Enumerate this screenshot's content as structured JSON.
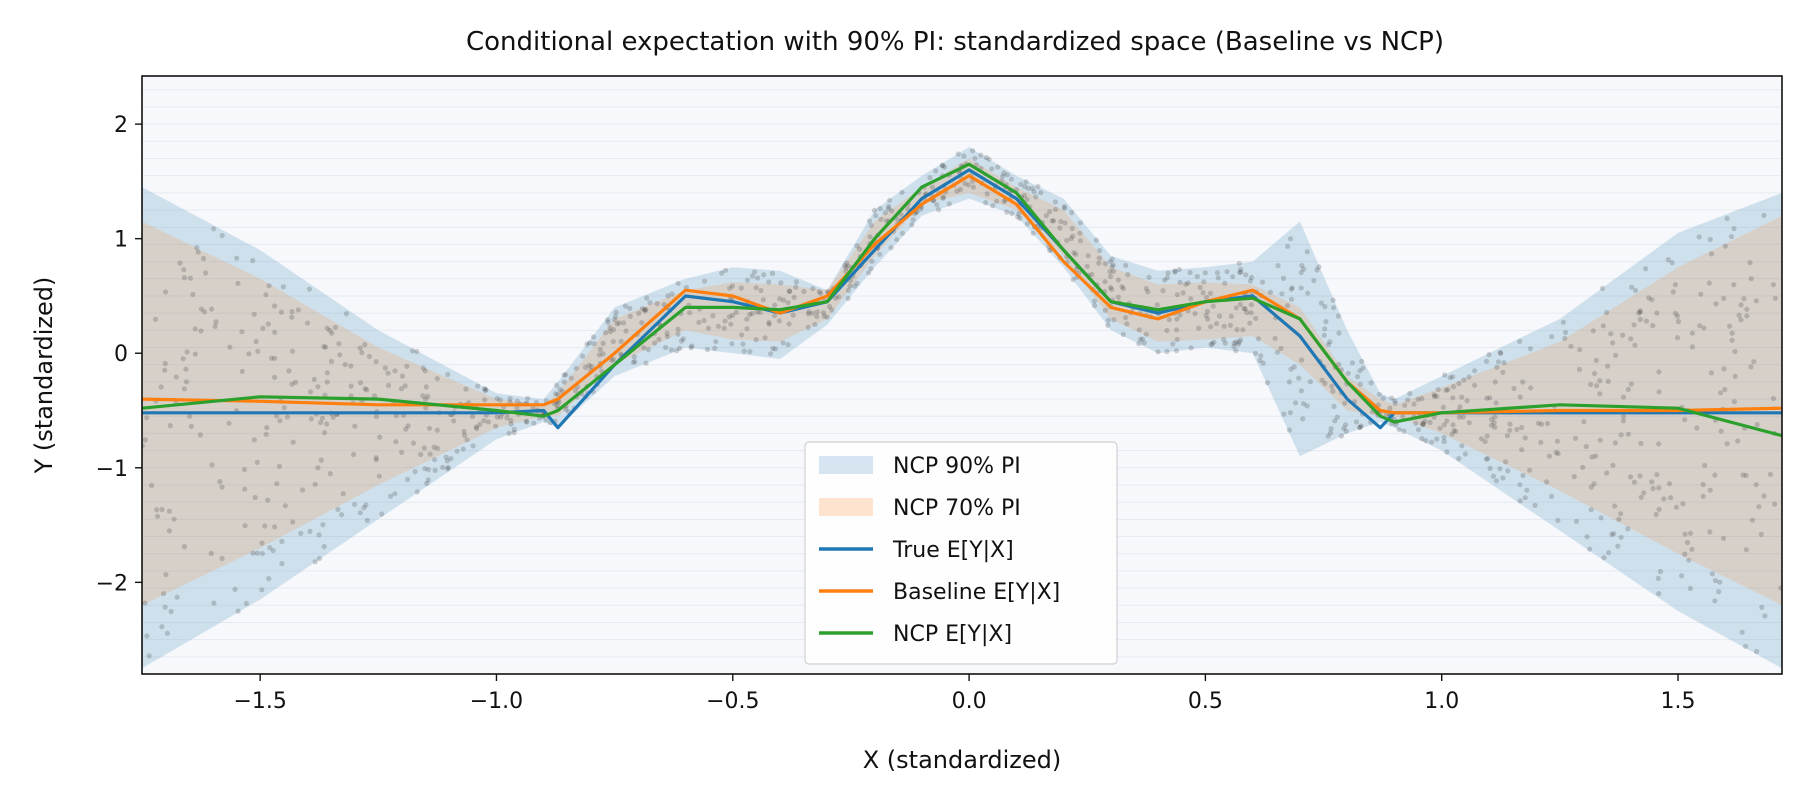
{
  "chart_data": {
    "type": "line",
    "title": "Conditional expectation with 90% PI: standardized space (Baseline vs NCP)",
    "xlabel": "X (standardized)",
    "ylabel": "Y (standardized)",
    "xlim": [
      -1.75,
      1.72
    ],
    "ylim": [
      -2.8,
      2.42
    ],
    "xticks": [
      -1.5,
      -1.0,
      -0.5,
      0.0,
      0.5,
      1.0,
      1.5
    ],
    "xtick_labels": [
      "−1.5",
      "−1.0",
      "−0.5",
      "0.0",
      "0.5",
      "1.0",
      "1.5"
    ],
    "yticks": [
      2,
      1,
      0,
      -1,
      -2
    ],
    "ytick_labels": [
      "2",
      "1",
      "0",
      "−1",
      "−2"
    ],
    "legend_position": "bottom-center",
    "colors": {
      "pi90": "#1f77b4",
      "pi70": "#ff7f0e",
      "true": "#1f77b4",
      "baseline": "#ff7f0e",
      "ncp": "#2ca02c",
      "points": "#333333"
    },
    "x": [
      -1.75,
      -1.5,
      -1.25,
      -1.0,
      -0.9,
      -0.87,
      -0.75,
      -0.6,
      -0.5,
      -0.4,
      -0.3,
      -0.2,
      -0.1,
      0.0,
      0.1,
      0.2,
      0.3,
      0.4,
      0.5,
      0.6,
      0.7,
      0.8,
      0.87,
      0.9,
      1.0,
      1.25,
      1.5,
      1.72
    ],
    "series": [
      {
        "name": "NCP 90% PI",
        "kind": "band",
        "lower": [
          -2.75,
          -2.15,
          -1.45,
          -0.75,
          -0.6,
          -0.65,
          -0.2,
          0.05,
          0.0,
          -0.05,
          0.25,
          0.75,
          1.2,
          1.35,
          1.2,
          0.75,
          0.2,
          0.0,
          0.05,
          0.0,
          -0.9,
          -0.7,
          -0.6,
          -0.65,
          -0.85,
          -1.55,
          -2.25,
          -2.75
        ],
        "upper": [
          1.45,
          0.9,
          0.2,
          -0.35,
          -0.4,
          -0.25,
          0.4,
          0.65,
          0.75,
          0.72,
          0.55,
          1.25,
          1.55,
          1.8,
          1.55,
          1.35,
          0.85,
          0.72,
          0.75,
          0.8,
          1.15,
          0.2,
          -0.35,
          -0.4,
          -0.2,
          0.3,
          1.05,
          1.4
        ]
      },
      {
        "name": "NCP 70% PI",
        "kind": "band",
        "lower": [
          -2.2,
          -1.7,
          -1.15,
          -0.65,
          -0.55,
          -0.55,
          -0.1,
          0.2,
          0.12,
          0.1,
          0.3,
          0.85,
          1.3,
          1.4,
          1.25,
          0.85,
          0.3,
          0.1,
          0.12,
          0.15,
          -0.1,
          -0.5,
          -0.55,
          -0.55,
          -0.7,
          -1.2,
          -1.75,
          -2.2
        ],
        "upper": [
          1.15,
          0.65,
          0.05,
          -0.4,
          -0.45,
          -0.35,
          0.3,
          0.55,
          0.62,
          0.6,
          0.55,
          1.15,
          1.45,
          1.7,
          1.45,
          1.25,
          0.75,
          0.6,
          0.62,
          0.6,
          0.4,
          -0.2,
          -0.4,
          -0.45,
          -0.3,
          0.1,
          0.75,
          1.2
        ]
      },
      {
        "name": "True E[Y|X]",
        "kind": "line",
        "values": [
          -0.52,
          -0.52,
          -0.52,
          -0.52,
          -0.5,
          -0.65,
          -0.1,
          0.5,
          0.45,
          0.35,
          0.45,
          0.9,
          1.35,
          1.6,
          1.35,
          0.9,
          0.45,
          0.35,
          0.45,
          0.5,
          0.15,
          -0.4,
          -0.65,
          -0.52,
          -0.52,
          -0.52,
          -0.52,
          -0.52
        ]
      },
      {
        "name": "Baseline E[Y|X]",
        "kind": "line",
        "values": [
          -0.4,
          -0.42,
          -0.45,
          -0.45,
          -0.45,
          -0.4,
          0.0,
          0.55,
          0.5,
          0.35,
          0.5,
          0.95,
          1.3,
          1.55,
          1.3,
          0.8,
          0.4,
          0.3,
          0.45,
          0.55,
          0.3,
          -0.25,
          -0.5,
          -0.52,
          -0.52,
          -0.5,
          -0.5,
          -0.48
        ]
      },
      {
        "name": "NCP E[Y|X]",
        "kind": "line",
        "values": [
          -0.48,
          -0.38,
          -0.4,
          -0.5,
          -0.55,
          -0.5,
          -0.1,
          0.4,
          0.4,
          0.38,
          0.45,
          1.0,
          1.45,
          1.65,
          1.4,
          0.9,
          0.45,
          0.38,
          0.45,
          0.48,
          0.3,
          -0.25,
          -0.55,
          -0.6,
          -0.52,
          -0.45,
          -0.48,
          -0.72
        ]
      }
    ]
  }
}
